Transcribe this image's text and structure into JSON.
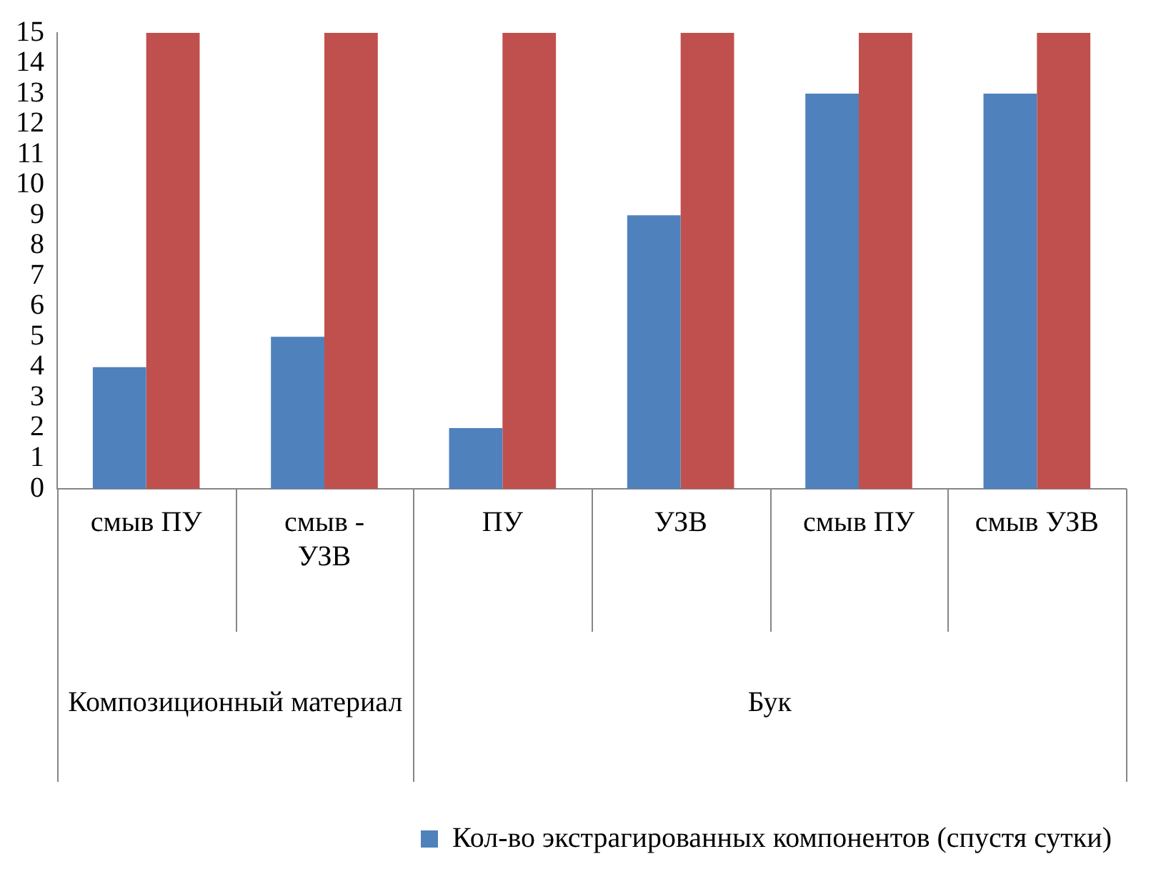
{
  "chart_data": {
    "type": "bar",
    "categories": [
      "смыв ПУ",
      "смыв - УЗВ",
      "ПУ",
      "УЗВ",
      "смыв ПУ",
      "смыв УЗВ"
    ],
    "series": [
      {
        "name": "Кол-во экстрагированных компонентов (спустя сутки)",
        "color": "#4f81bd",
        "values": [
          4,
          5,
          2,
          9,
          13,
          13
        ]
      },
      {
        "color": "#c0504d",
        "values": [
          15,
          15,
          15,
          15,
          15,
          15
        ]
      }
    ],
    "ylim": [
      0,
      15
    ],
    "yticks": [
      0,
      1,
      2,
      3,
      4,
      5,
      6,
      7,
      8,
      9,
      10,
      11,
      12,
      13,
      14,
      15
    ],
    "grid": false,
    "legend": "bottom",
    "annotations": [
      "Композиционный материал",
      "Бук"
    ]
  }
}
